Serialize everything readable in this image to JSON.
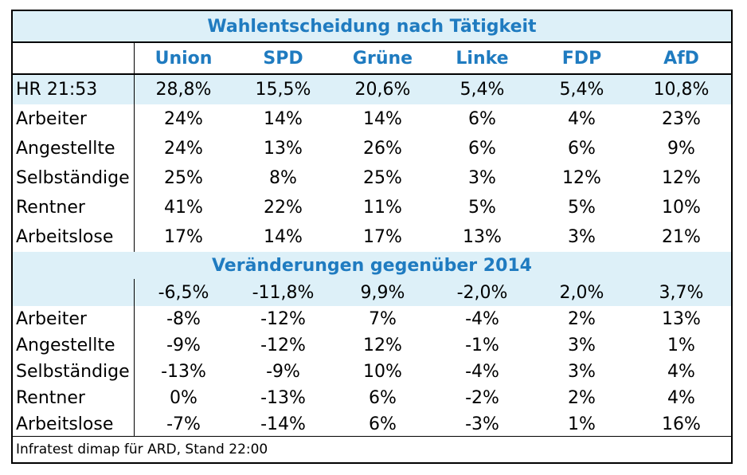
{
  "chart_data": {
    "type": "table",
    "title": "Wahlentscheidung nach Tätigkeit",
    "columns": [
      "Union",
      "SPD",
      "Grüne",
      "Linke",
      "FDP",
      "AfD"
    ],
    "section1": {
      "rows": [
        {
          "label": "HR 21:53",
          "values": [
            "28,8%",
            "15,5%",
            "20,6%",
            "5,4%",
            "5,4%",
            "10,8%"
          ]
        },
        {
          "label": "Arbeiter",
          "values": [
            "24%",
            "14%",
            "14%",
            "6%",
            "4%",
            "23%"
          ]
        },
        {
          "label": "Angestellte",
          "values": [
            "24%",
            "13%",
            "26%",
            "6%",
            "6%",
            "9%"
          ]
        },
        {
          "label": "Selbständige",
          "values": [
            "25%",
            "8%",
            "25%",
            "3%",
            "12%",
            "12%"
          ]
        },
        {
          "label": "Rentner",
          "values": [
            "41%",
            "22%",
            "11%",
            "5%",
            "5%",
            "10%"
          ]
        },
        {
          "label": "Arbeitslose",
          "values": [
            "17%",
            "14%",
            "17%",
            "13%",
            "3%",
            "21%"
          ]
        }
      ]
    },
    "section2_title": "Veränderungen gegenüber 2014",
    "section2": {
      "rows": [
        {
          "label": "",
          "values": [
            "-6,5%",
            "-11,8%",
            "9,9%",
            "-2,0%",
            "2,0%",
            "3,7%"
          ]
        },
        {
          "label": "Arbeiter",
          "values": [
            "-8%",
            "-12%",
            "7%",
            "-4%",
            "2%",
            "13%"
          ]
        },
        {
          "label": "Angestellte",
          "values": [
            "-9%",
            "-12%",
            "12%",
            "-1%",
            "3%",
            "1%"
          ]
        },
        {
          "label": "Selbständige",
          "values": [
            "-13%",
            "-9%",
            "10%",
            "-4%",
            "3%",
            "4%"
          ]
        },
        {
          "label": "Rentner",
          "values": [
            "0%",
            "-13%",
            "6%",
            "-2%",
            "2%",
            "4%"
          ]
        },
        {
          "label": "Arbeitslose",
          "values": [
            "-7%",
            "-14%",
            "6%",
            "-3%",
            "1%",
            "16%"
          ]
        }
      ]
    },
    "footer": "Infratest dimap für ARD, Stand 22:00"
  },
  "colors": {
    "title": "#1f7bc0",
    "highlight": "#ddf0f8",
    "border": "#000000"
  }
}
